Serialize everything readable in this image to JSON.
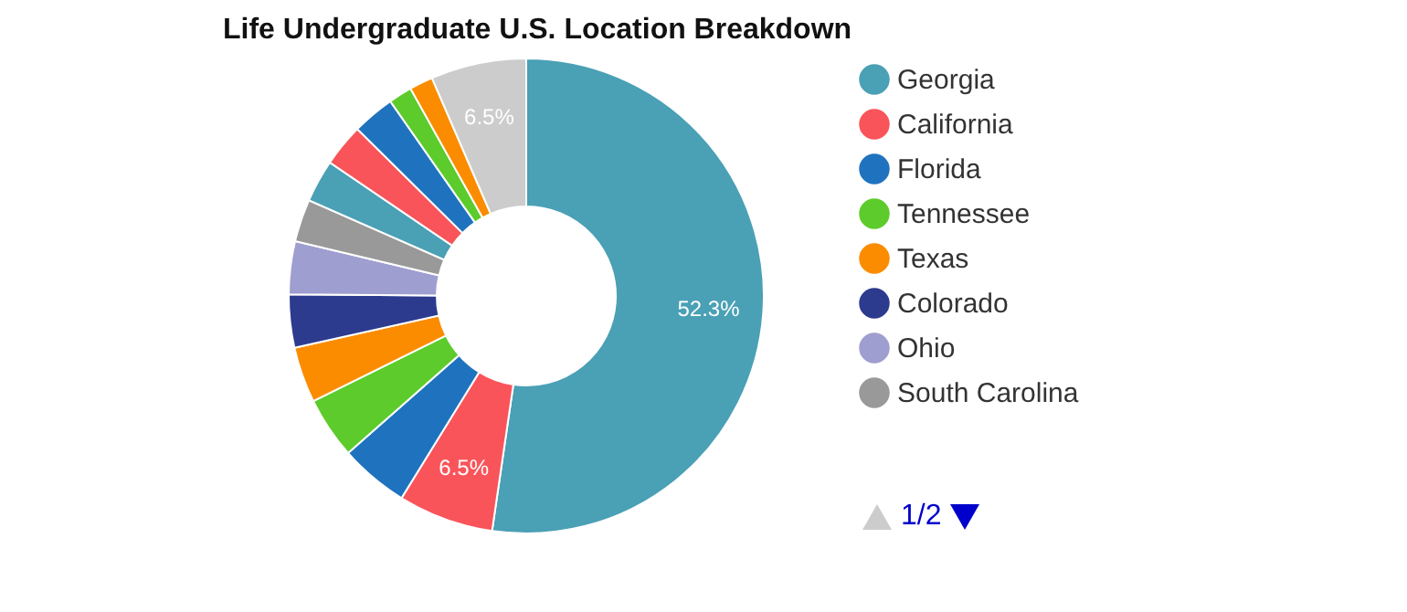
{
  "chart_data": {
    "type": "donut",
    "title": "Life Undergraduate U.S. Location Breakdown",
    "categories": [
      "Georgia",
      "California",
      "Florida",
      "Tennessee",
      "Texas",
      "Colorado",
      "Ohio",
      "South Carolina",
      null,
      null,
      null,
      null,
      null,
      null
    ],
    "values": [
      52.3,
      6.5,
      4.7,
      4.2,
      3.8,
      3.6,
      3.6,
      2.9,
      2.9,
      2.9,
      2.9,
      1.6,
      1.6,
      6.5
    ],
    "colors": [
      "#4aa0b5",
      "#f9545a",
      "#1f73be",
      "#5ccb2b",
      "#fb8c00",
      "#2c3b8e",
      "#9e9ed0",
      "#999999",
      "#4aa0b5",
      "#f9545a",
      "#1f73be",
      "#5ccb2b",
      "#fb8c00",
      "#cccccc"
    ],
    "value_labels": [
      "52.3%",
      "6.5%",
      null,
      null,
      null,
      null,
      null,
      null,
      null,
      null,
      null,
      null,
      null,
      "6.5%"
    ],
    "legend": "right",
    "annotations": [
      "1/2"
    ]
  }
}
